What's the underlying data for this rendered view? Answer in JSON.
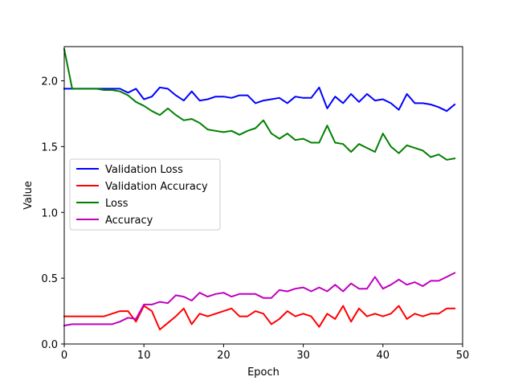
{
  "chart_data": {
    "type": "line",
    "title": "",
    "xlabel": "Epoch",
    "ylabel": "Value",
    "xlim": [
      0,
      50
    ],
    "ylim": [
      0.0,
      2.26
    ],
    "xticks": [
      "0",
      "10",
      "20",
      "30",
      "40",
      "50"
    ],
    "xtick_values": [
      0,
      10,
      20,
      30,
      40,
      50
    ],
    "yticks": [
      "0.0",
      "0.5",
      "1.0",
      "1.5",
      "2.0"
    ],
    "ytick_values": [
      0.0,
      0.5,
      1.0,
      1.5,
      2.0
    ],
    "grid": false,
    "legend_position": "center-left",
    "x": [
      0,
      1,
      2,
      3,
      4,
      5,
      6,
      7,
      8,
      9,
      10,
      11,
      12,
      13,
      14,
      15,
      16,
      17,
      18,
      19,
      20,
      21,
      22,
      23,
      24,
      25,
      26,
      27,
      28,
      29,
      30,
      31,
      32,
      33,
      34,
      35,
      36,
      37,
      38,
      39,
      40,
      41,
      42,
      43,
      44,
      45,
      46,
      47,
      48,
      49
    ],
    "series": [
      {
        "name": "Validation Loss",
        "color": "#0000ff",
        "values": [
          1.94,
          1.94,
          1.94,
          1.94,
          1.94,
          1.94,
          1.94,
          1.94,
          1.91,
          1.94,
          1.86,
          1.88,
          1.95,
          1.94,
          1.89,
          1.85,
          1.92,
          1.85,
          1.86,
          1.88,
          1.88,
          1.87,
          1.89,
          1.89,
          1.83,
          1.85,
          1.86,
          1.87,
          1.83,
          1.88,
          1.87,
          1.87,
          1.95,
          1.79,
          1.88,
          1.83,
          1.9,
          1.84,
          1.9,
          1.85,
          1.86,
          1.83,
          1.78,
          1.9,
          1.83,
          1.83,
          1.82,
          1.8,
          1.77,
          1.82
        ]
      },
      {
        "name": "Validation Accuracy",
        "color": "#ff0000",
        "values": [
          0.21,
          0.21,
          0.21,
          0.21,
          0.21,
          0.21,
          0.23,
          0.25,
          0.25,
          0.17,
          0.29,
          0.25,
          0.11,
          0.16,
          0.21,
          0.27,
          0.15,
          0.23,
          0.21,
          0.23,
          0.25,
          0.27,
          0.21,
          0.21,
          0.25,
          0.23,
          0.15,
          0.19,
          0.25,
          0.21,
          0.23,
          0.21,
          0.13,
          0.23,
          0.19,
          0.29,
          0.17,
          0.27,
          0.21,
          0.23,
          0.21,
          0.23,
          0.29,
          0.19,
          0.23,
          0.21,
          0.23,
          0.23,
          0.27,
          0.27
        ]
      },
      {
        "name": "Loss",
        "color": "#008000",
        "values": [
          2.24,
          1.94,
          1.94,
          1.94,
          1.94,
          1.93,
          1.93,
          1.92,
          1.89,
          1.84,
          1.81,
          1.77,
          1.74,
          1.79,
          1.74,
          1.7,
          1.71,
          1.68,
          1.63,
          1.62,
          1.61,
          1.62,
          1.59,
          1.62,
          1.64,
          1.7,
          1.6,
          1.56,
          1.6,
          1.55,
          1.56,
          1.53,
          1.53,
          1.66,
          1.53,
          1.52,
          1.46,
          1.52,
          1.49,
          1.46,
          1.6,
          1.5,
          1.45,
          1.51,
          1.49,
          1.47,
          1.42,
          1.44,
          1.4,
          1.41
        ]
      },
      {
        "name": "Accuracy",
        "color": "#bf00bf",
        "values": [
          0.14,
          0.15,
          0.15,
          0.15,
          0.15,
          0.15,
          0.15,
          0.17,
          0.2,
          0.19,
          0.3,
          0.3,
          0.32,
          0.31,
          0.37,
          0.36,
          0.33,
          0.39,
          0.36,
          0.38,
          0.39,
          0.36,
          0.38,
          0.38,
          0.38,
          0.35,
          0.35,
          0.41,
          0.4,
          0.42,
          0.43,
          0.4,
          0.43,
          0.4,
          0.45,
          0.4,
          0.46,
          0.42,
          0.42,
          0.51,
          0.42,
          0.45,
          0.49,
          0.45,
          0.47,
          0.44,
          0.48,
          0.48,
          0.51,
          0.54
        ]
      }
    ]
  }
}
